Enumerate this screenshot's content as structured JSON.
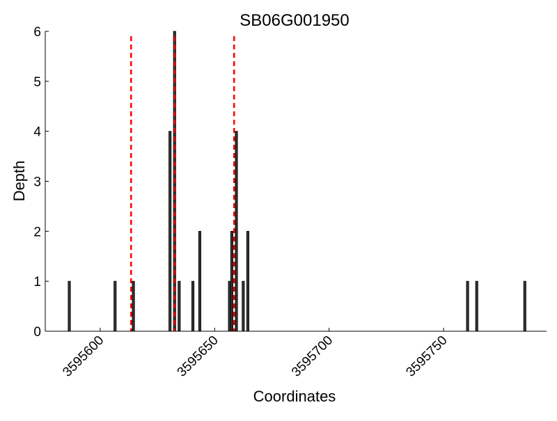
{
  "chart_data": {
    "type": "bar",
    "title": "SB06G001950",
    "xlabel": "Coordinates",
    "ylabel": "Depth",
    "xlim": [
      3595576,
      3595795
    ],
    "ylim": [
      0,
      6
    ],
    "xticks": [
      3595600,
      3595650,
      3595700,
      3595750
    ],
    "yticks": [
      0,
      1,
      2,
      3,
      4,
      5,
      6
    ],
    "grid": false,
    "bar_color": "#333333",
    "marker_color": "#ff0000",
    "x": [
      3595586,
      3595606,
      3595614,
      3595630,
      3595632,
      3595634,
      3595640,
      3595643,
      3595656,
      3595657,
      3595659,
      3595662,
      3595664,
      3595760,
      3595764,
      3595785
    ],
    "values": [
      1,
      1,
      1,
      4,
      6,
      1,
      1,
      2,
      1,
      2,
      4,
      1,
      2,
      1,
      1,
      1
    ],
    "vertical_lines": [
      3595613.5,
      3595632.5,
      3595658.5
    ]
  }
}
